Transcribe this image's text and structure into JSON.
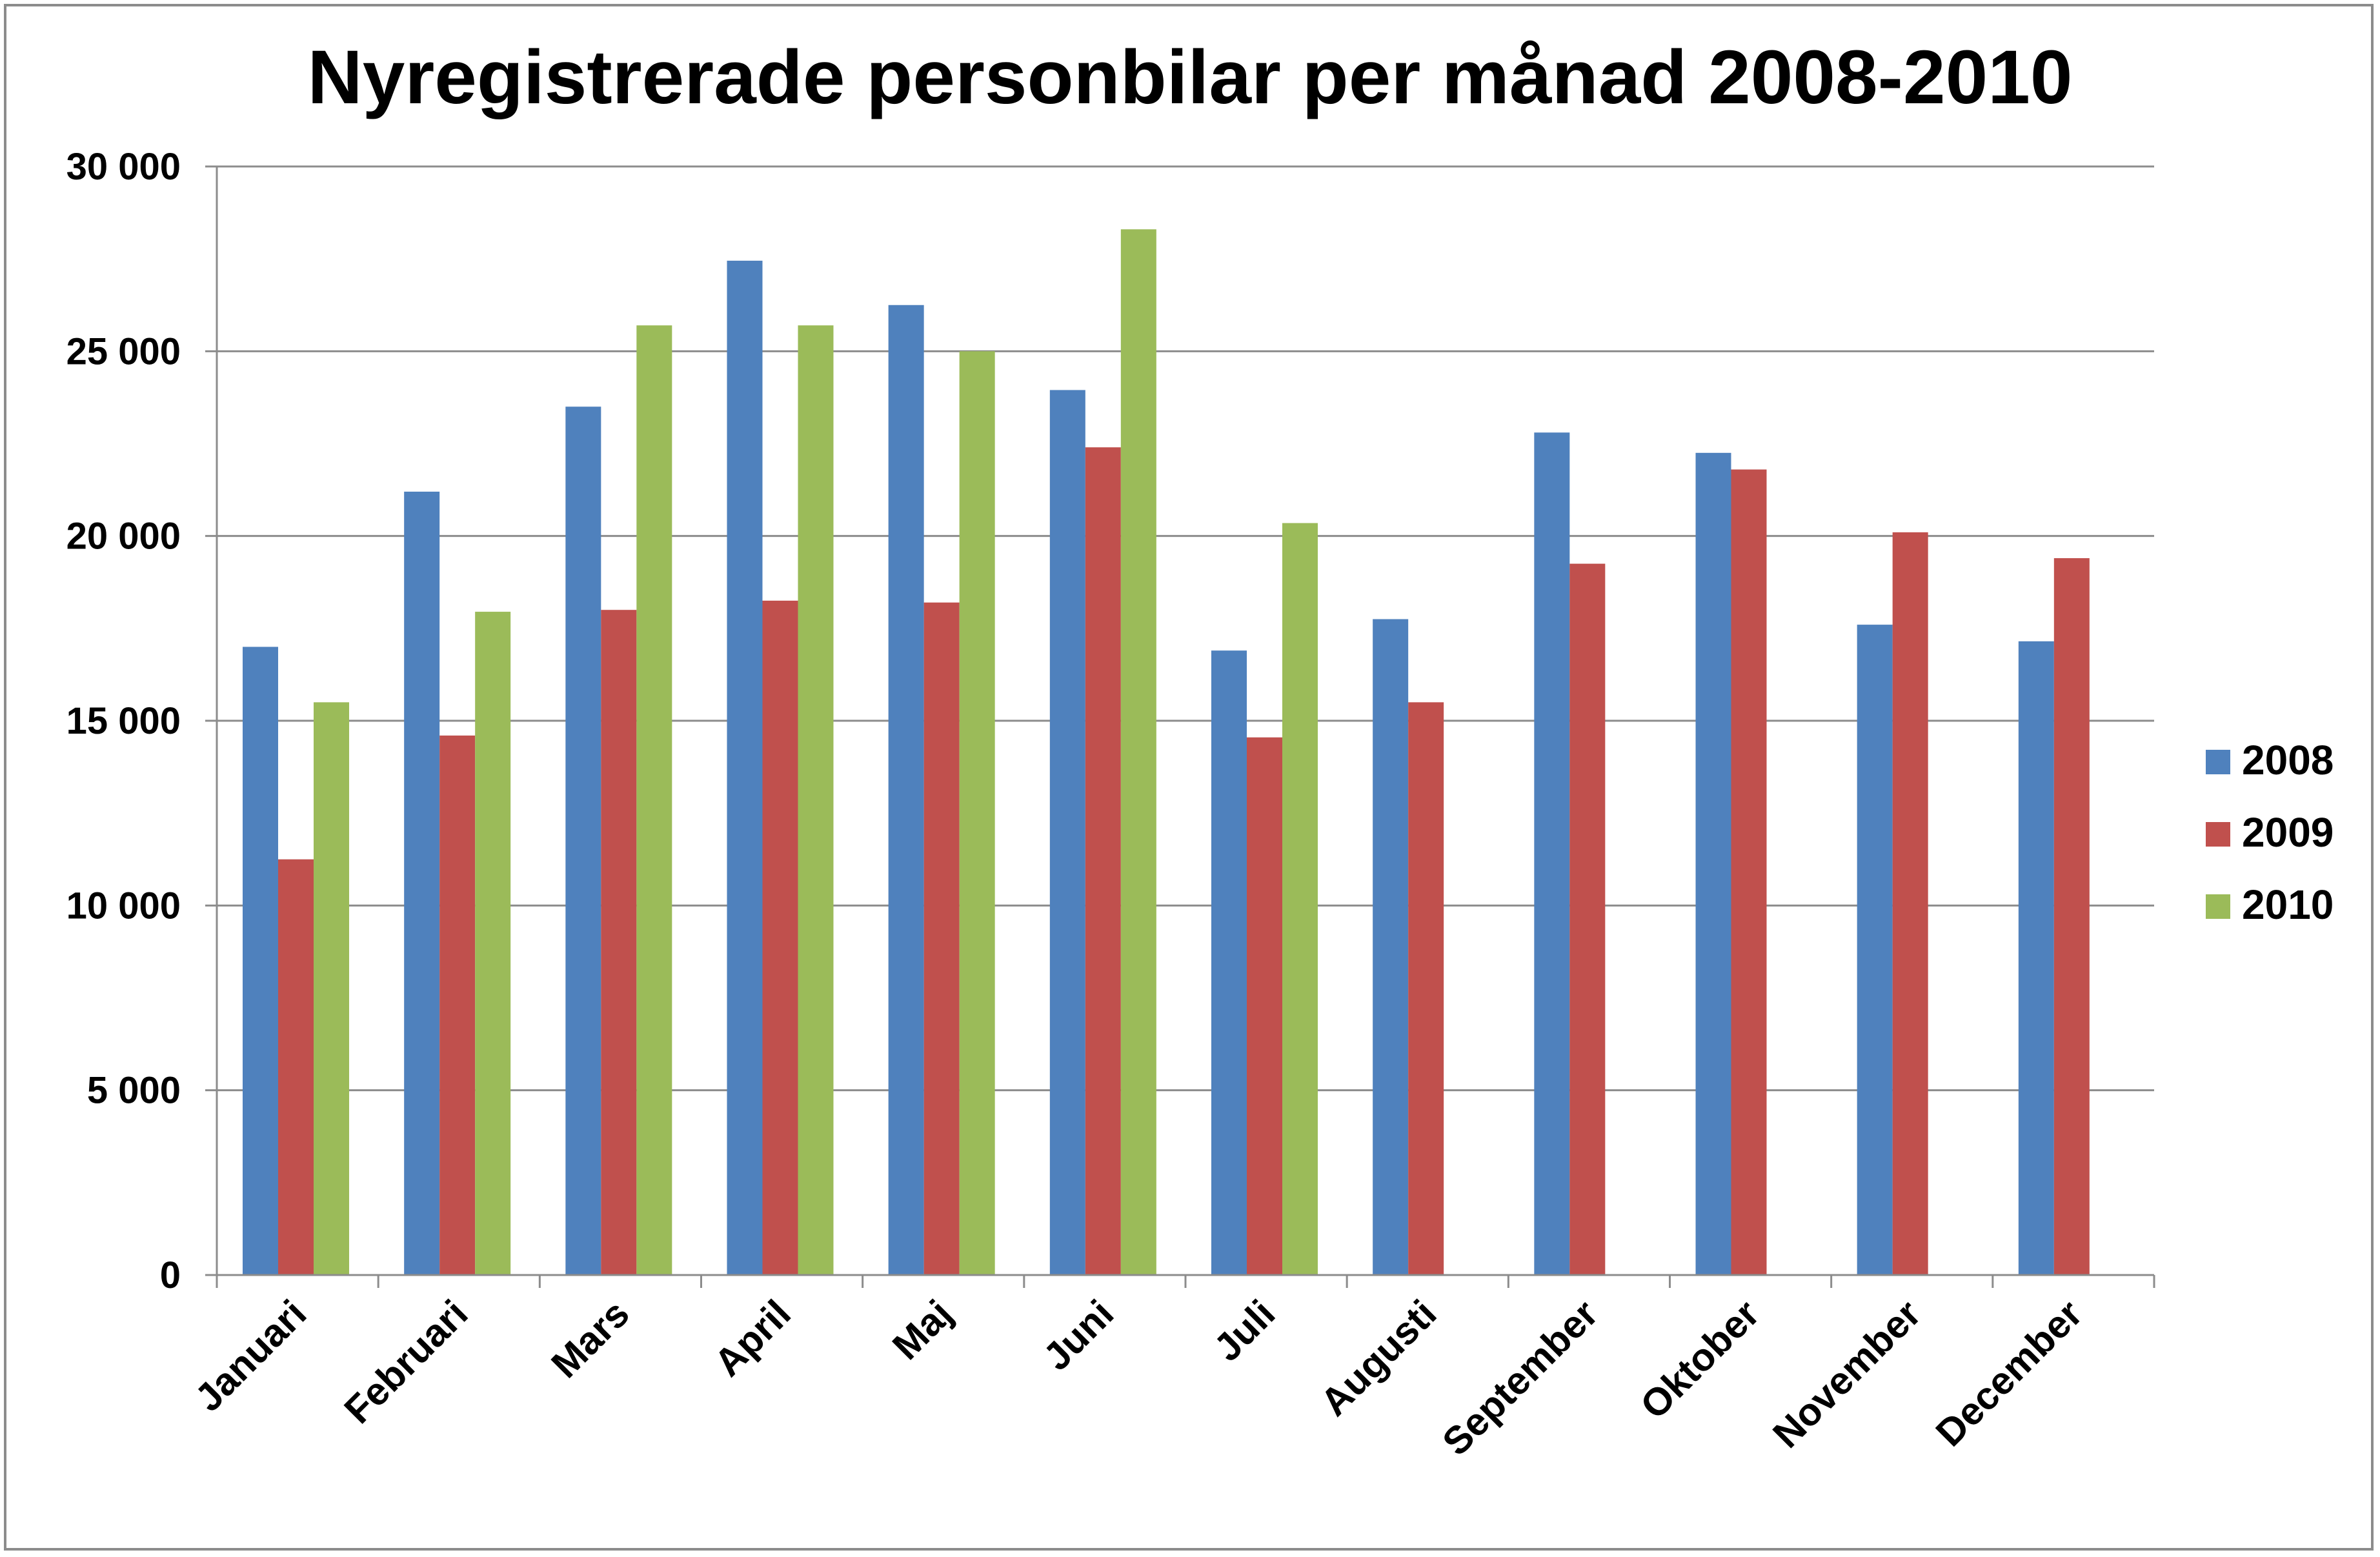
{
  "chart_data": {
    "type": "bar",
    "title": "Nyregistrerade personbilar per månad 2008-2010",
    "xlabel": "",
    "ylabel": "",
    "ylim": [
      0,
      30000
    ],
    "yticks": [
      0,
      5000,
      10000,
      15000,
      20000,
      25000,
      30000
    ],
    "ytick_labels": [
      "0",
      "5 000",
      "10 000",
      "15 000",
      "20 000",
      "25 000",
      "30 000"
    ],
    "categories": [
      "Januari",
      "Februari",
      "Mars",
      "April",
      "Maj",
      "Juni",
      "Juli",
      "Augusti",
      "September",
      "Oktober",
      "November",
      "December"
    ],
    "series": [
      {
        "name": "2008",
        "color": "#4F81BD",
        "values": [
          17000,
          21200,
          23500,
          27450,
          26250,
          23950,
          16900,
          17750,
          22800,
          22250,
          17600,
          17150
        ]
      },
      {
        "name": "2009",
        "color": "#C0504D",
        "values": [
          11250,
          14600,
          18000,
          18250,
          18200,
          22400,
          14550,
          15500,
          19250,
          21800,
          20100,
          19400
        ]
      },
      {
        "name": "2010",
        "color": "#9BBB59",
        "values": [
          15500,
          17950,
          25700,
          25700,
          25000,
          28300,
          20350,
          null,
          null,
          null,
          null,
          null
        ]
      }
    ],
    "grid": true,
    "legend_position": "right"
  }
}
